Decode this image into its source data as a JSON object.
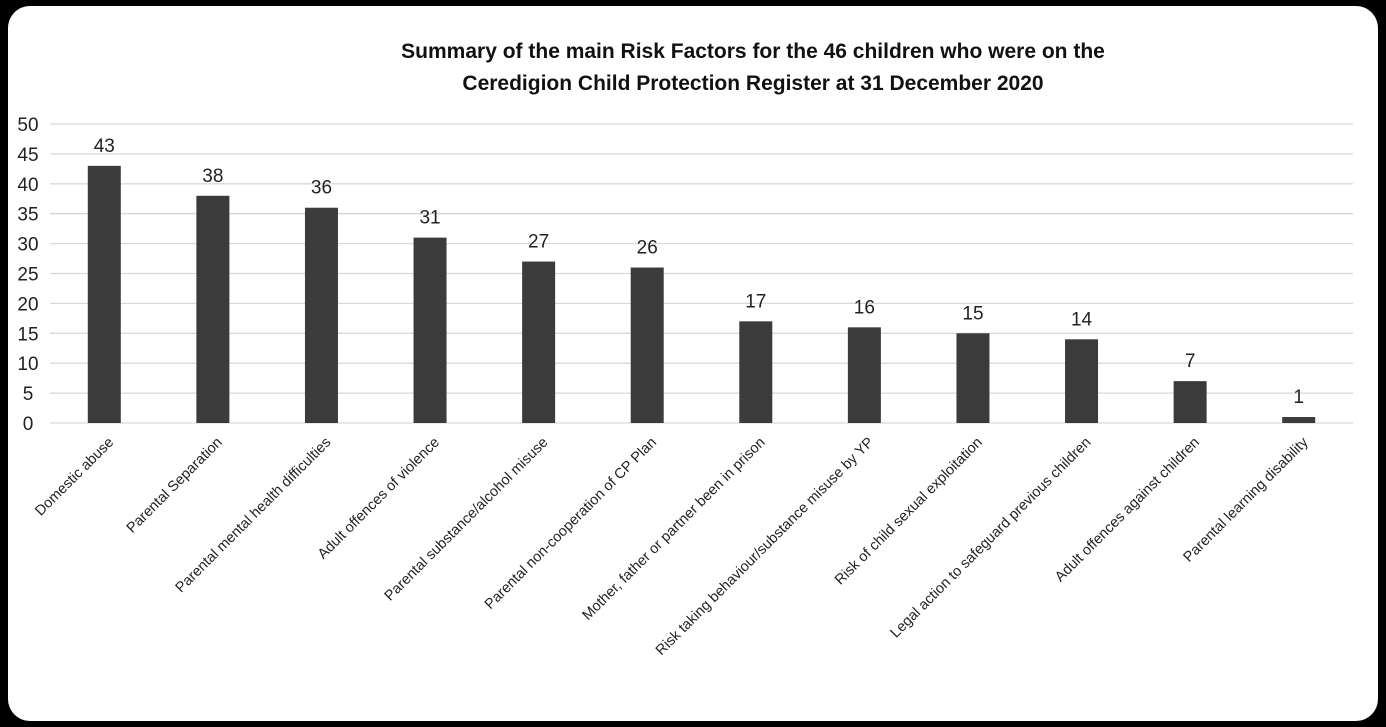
{
  "chart_data": {
    "type": "bar",
    "title_lines": [
      "Summary of the main Risk Factors for the 46 children who were on the",
      "Ceredigion Child Protection Register at 31 December 2020"
    ],
    "categories": [
      "Domestic abuse",
      "Parental Separation",
      "Parental mental health difficulties",
      "Adult offences of violence",
      "Parental substance/alcohol misuse",
      "Parental non-cooperation of CP Plan",
      "Mother, father or partner been in prison",
      "Risk taking behaviour/substance misuse by YP",
      "Risk of child sexual exploitation",
      "Legal action  to safeguard previous children",
      "Adult offences against children",
      "Parental learning disability"
    ],
    "values": [
      43,
      38,
      36,
      31,
      27,
      26,
      17,
      16,
      15,
      14,
      7,
      1
    ],
    "data_labels": [
      "43",
      "38",
      "36",
      "31",
      "27",
      "26",
      "17",
      "16",
      "15",
      "14",
      "7",
      "1"
    ],
    "ylim": [
      0,
      50
    ],
    "yticks": [
      "0",
      "5",
      "10",
      "15",
      "20",
      "25",
      "30",
      "35",
      "40",
      "45",
      "50"
    ],
    "xlabel": "",
    "ylabel": "",
    "grid": true,
    "legend": "none",
    "colors": {
      "bar": "#3b3b3b",
      "grid": "#d9d9d9",
      "frame_background": "#ffffff",
      "page_background": "#000000"
    }
  }
}
